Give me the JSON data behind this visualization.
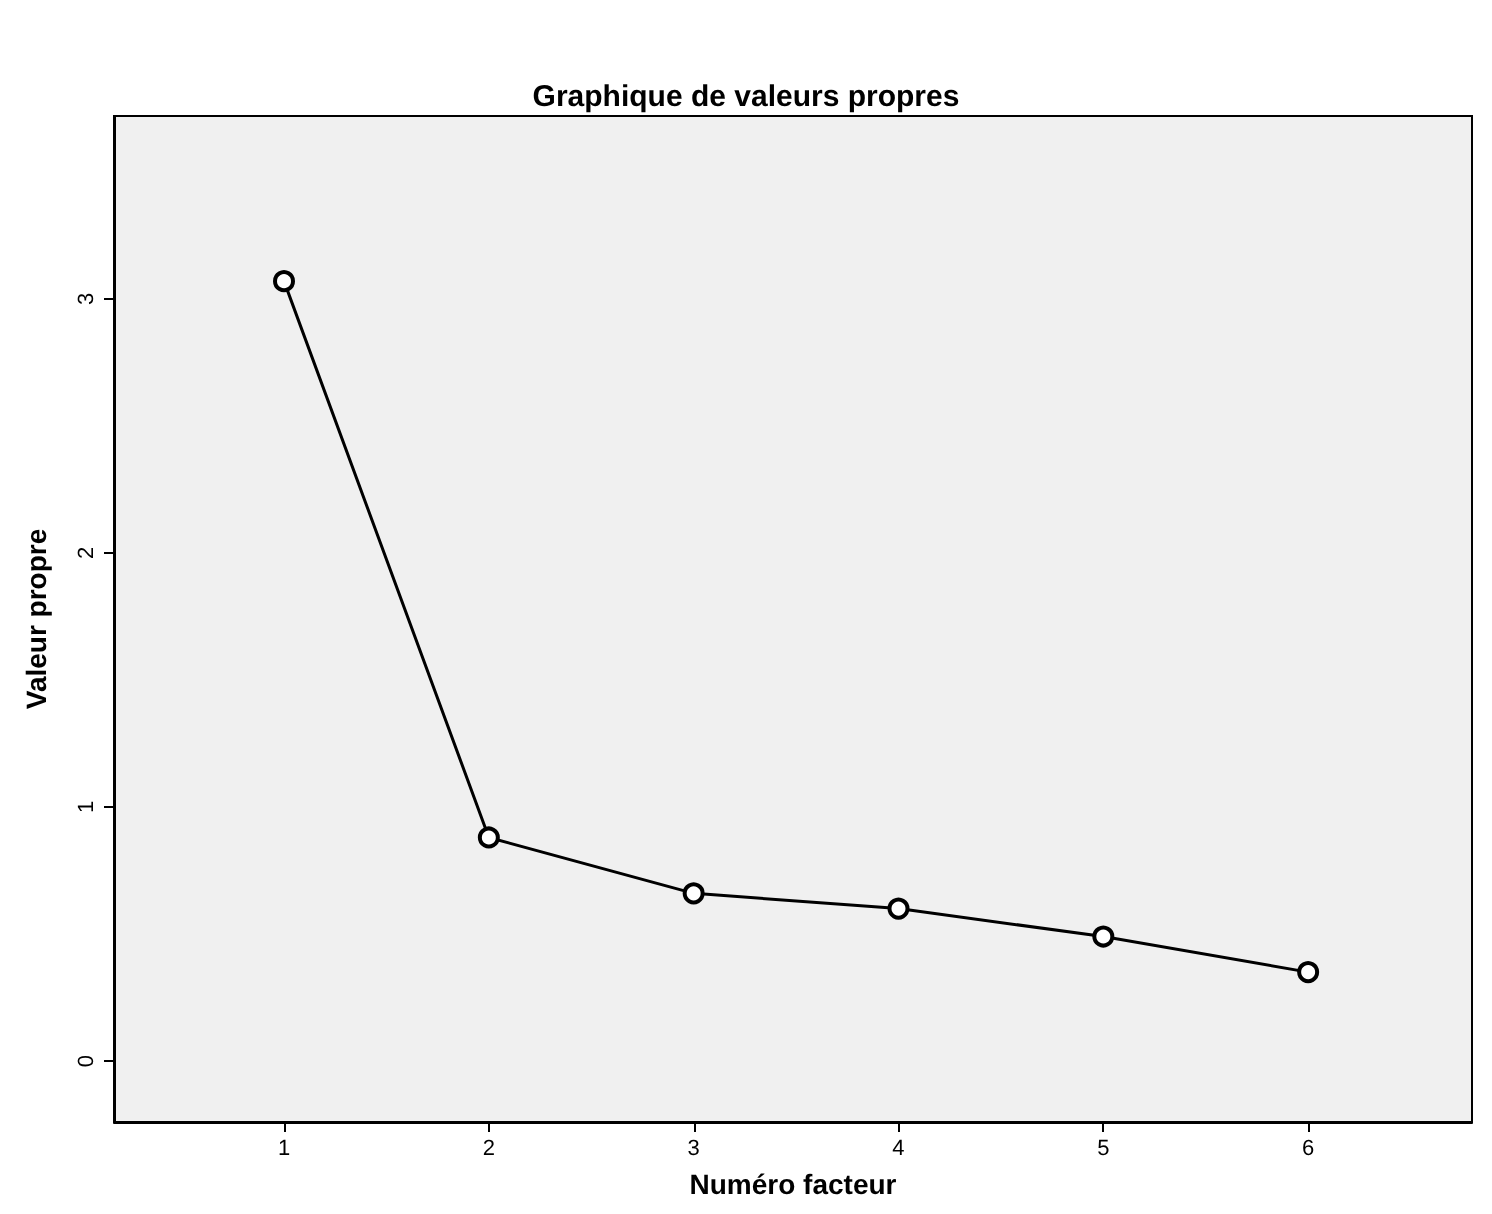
{
  "chart_data": {
    "type": "line",
    "title": "Graphique de valeurs propres",
    "xlabel": "Numéro facteur",
    "ylabel": "Valeur propre",
    "x": [
      1,
      2,
      3,
      4,
      5,
      6
    ],
    "series": [
      {
        "color": "#000000",
        "values": [
          3.07,
          0.88,
          0.66,
          0.6,
          0.49,
          0.35
        ]
      }
    ],
    "xlim": [
      0.17,
      6.8
    ],
    "xticks": [
      1,
      2,
      3,
      4,
      5,
      6
    ],
    "ylim": [
      -0.24,
      3.72
    ],
    "yticks": [
      0,
      1,
      2,
      3
    ],
    "grid": false,
    "marker": "circle",
    "line_style": "solid"
  }
}
